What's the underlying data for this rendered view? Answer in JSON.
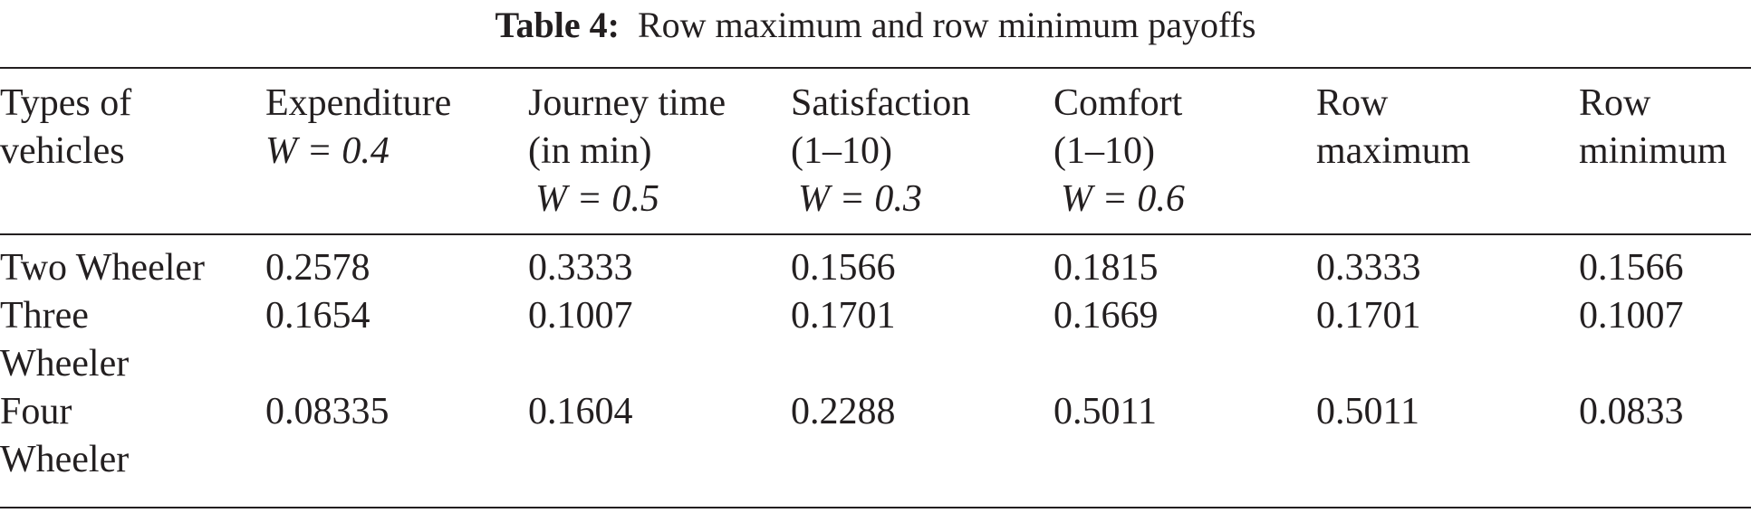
{
  "caption": {
    "label": "Table 4:",
    "title": "Row maximum and row minimum payoffs"
  },
  "table": {
    "headers": [
      {
        "lines": [
          "Types of",
          "vehicles"
        ],
        "weight": null
      },
      {
        "lines": [
          "Expenditure"
        ],
        "weight": "W = 0.4"
      },
      {
        "lines": [
          "Journey time",
          "(in min)"
        ],
        "weight": "W = 0.5"
      },
      {
        "lines": [
          "Satisfaction",
          "(1–10)"
        ],
        "weight": "W = 0.3"
      },
      {
        "lines": [
          "Comfort",
          "(1–10)"
        ],
        "weight": "W = 0.6"
      },
      {
        "lines": [
          "Row",
          "maximum"
        ],
        "weight": null
      },
      {
        "lines": [
          "Row",
          "minimum"
        ],
        "weight": null
      }
    ],
    "rows": [
      {
        "vehicle": [
          "Two Wheeler"
        ],
        "values": [
          "0.2578",
          "0.3333",
          "0.1566",
          "0.1815",
          "0.3333",
          "0.1566"
        ]
      },
      {
        "vehicle": [
          "Three",
          "Wheeler"
        ],
        "values": [
          "0.1654",
          "0.1007",
          "0.1701",
          "0.1669",
          "0.1701",
          "0.1007"
        ]
      },
      {
        "vehicle": [
          "Four",
          "Wheeler"
        ],
        "values": [
          "0.08335",
          "0.1604",
          "0.2288",
          "0.5011",
          "0.5011",
          "0.0833"
        ]
      }
    ]
  }
}
